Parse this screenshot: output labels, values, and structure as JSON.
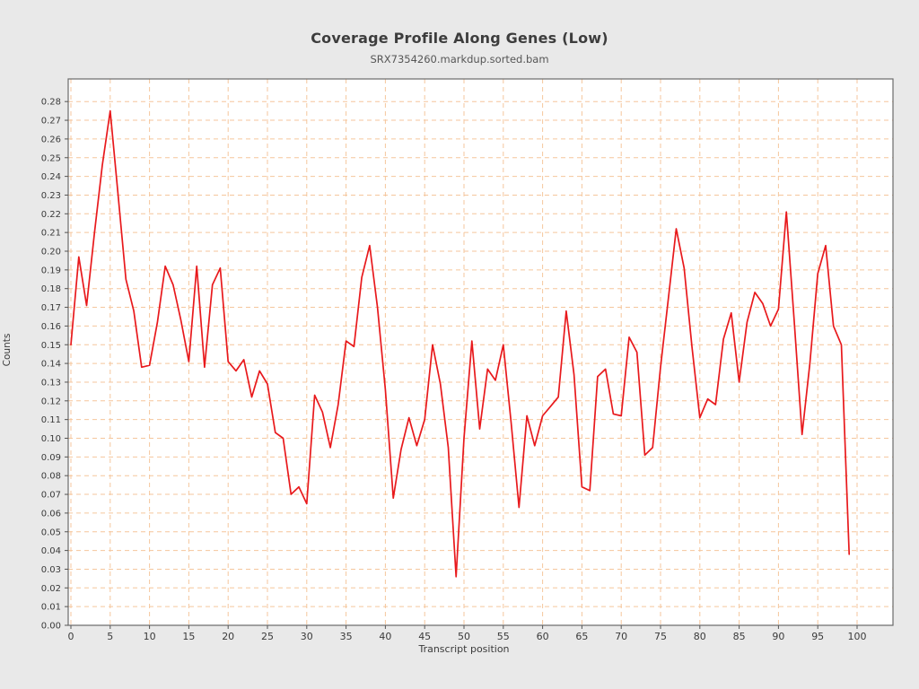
{
  "header": {
    "title": "Coverage Profile Along Genes (Low)",
    "subtitle": "SRX7354260.markdup.sorted.bam"
  },
  "chart_data": {
    "type": "line",
    "title": "Coverage Profile Along Genes (Low)",
    "subtitle": "SRX7354260.markdup.sorted.bam",
    "xlabel": "Transcript position",
    "ylabel": "Counts",
    "xlim": [
      0,
      100
    ],
    "ylim": [
      0,
      0.285
    ],
    "grid": "both, dashed, every 5 on x, every 0.01 on y",
    "legend": "none",
    "x_ticks": [
      0,
      5,
      10,
      15,
      20,
      25,
      30,
      35,
      40,
      45,
      50,
      55,
      60,
      65,
      70,
      75,
      80,
      85,
      90,
      95,
      100
    ],
    "y_ticks": [
      "0.00",
      "0.01",
      "0.02",
      "0.03",
      "0.04",
      "0.05",
      "0.06",
      "0.07",
      "0.08",
      "0.09",
      "0.10",
      "0.11",
      "0.12",
      "0.13",
      "0.14",
      "0.15",
      "0.16",
      "0.17",
      "0.18",
      "0.19",
      "0.20",
      "0.21",
      "0.22",
      "0.23",
      "0.24",
      "0.25",
      "0.26",
      "0.27",
      "0.28"
    ],
    "series": [
      {
        "name": "coverage",
        "x_start": 0,
        "x_step": 1,
        "values": [
          0.15,
          0.197,
          0.171,
          0.21,
          0.246,
          0.275,
          0.23,
          0.185,
          0.168,
          0.138,
          0.139,
          0.162,
          0.192,
          0.182,
          0.163,
          0.141,
          0.192,
          0.138,
          0.182,
          0.191,
          0.141,
          0.136,
          0.142,
          0.122,
          0.136,
          0.129,
          0.103,
          0.1,
          0.07,
          0.074,
          0.065,
          0.123,
          0.114,
          0.095,
          0.118,
          0.152,
          0.149,
          0.186,
          0.203,
          0.17,
          0.126,
          0.068,
          0.094,
          0.111,
          0.096,
          0.11,
          0.15,
          0.129,
          0.095,
          0.026,
          0.1,
          0.152,
          0.105,
          0.137,
          0.131,
          0.15,
          0.108,
          0.063,
          0.112,
          0.096,
          0.112,
          0.117,
          0.122,
          0.168,
          0.134,
          0.074,
          0.072,
          0.133,
          0.137,
          0.113,
          0.112,
          0.154,
          0.146,
          0.091,
          0.095,
          0.138,
          0.175,
          0.212,
          0.191,
          0.149,
          0.111,
          0.121,
          0.118,
          0.153,
          0.167,
          0.13,
          0.162,
          0.178,
          0.172,
          0.16,
          0.169,
          0.221,
          0.163,
          0.102,
          0.14,
          0.188,
          0.203,
          0.16,
          0.15,
          0.038
        ]
      }
    ],
    "colors": {
      "line": "#e8191c",
      "grid": "#f5c69c",
      "frame": "#6a6a6a",
      "tick": "#555555",
      "plot_background": "#ffffff",
      "page_background": "#e9e9e9"
    }
  }
}
